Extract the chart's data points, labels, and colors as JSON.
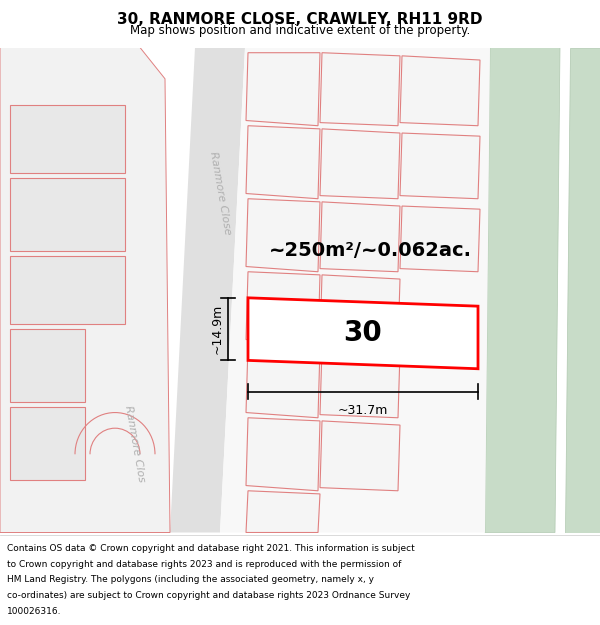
{
  "title": "30, RANMORE CLOSE, CRAWLEY, RH11 9RD",
  "subtitle": "Map shows position and indicative extent of the property.",
  "area_label": "~250m²/~0.062ac.",
  "property_number": "30",
  "dim_width": "~31.7m",
  "dim_height": "~14.9m",
  "street_label_upper": "Ranmore Close",
  "street_label_lower": "Ranmore Clos",
  "footer_lines": [
    "Contains OS data © Crown copyright and database right 2021. This information is subject",
    "to Crown copyright and database rights 2023 and is reproduced with the permission of",
    "HM Land Registry. The polygons (including the associated geometry, namely x, y",
    "co-ordinates) are subject to Crown copyright and database rights 2023 Ordnance Survey",
    "100026316."
  ],
  "map_bg": "#ffffff",
  "green_color": "#c8dcc8",
  "green_edge": "#b0c8b0",
  "road_bg": "#e8e8e8",
  "plot_fill": "#f0f0f0",
  "plot_edge": "#e08080",
  "highlight_fill": "#ffffff",
  "highlight_edge": "#ff0000",
  "dim_color": "#000000",
  "text_dark": "#000000",
  "text_gray": "#b0b0b0",
  "title_size": 11,
  "subtitle_size": 8.5,
  "area_label_size": 14,
  "number_size": 20,
  "dim_text_size": 9,
  "street_label_size": 8,
  "footer_size": 6.5
}
